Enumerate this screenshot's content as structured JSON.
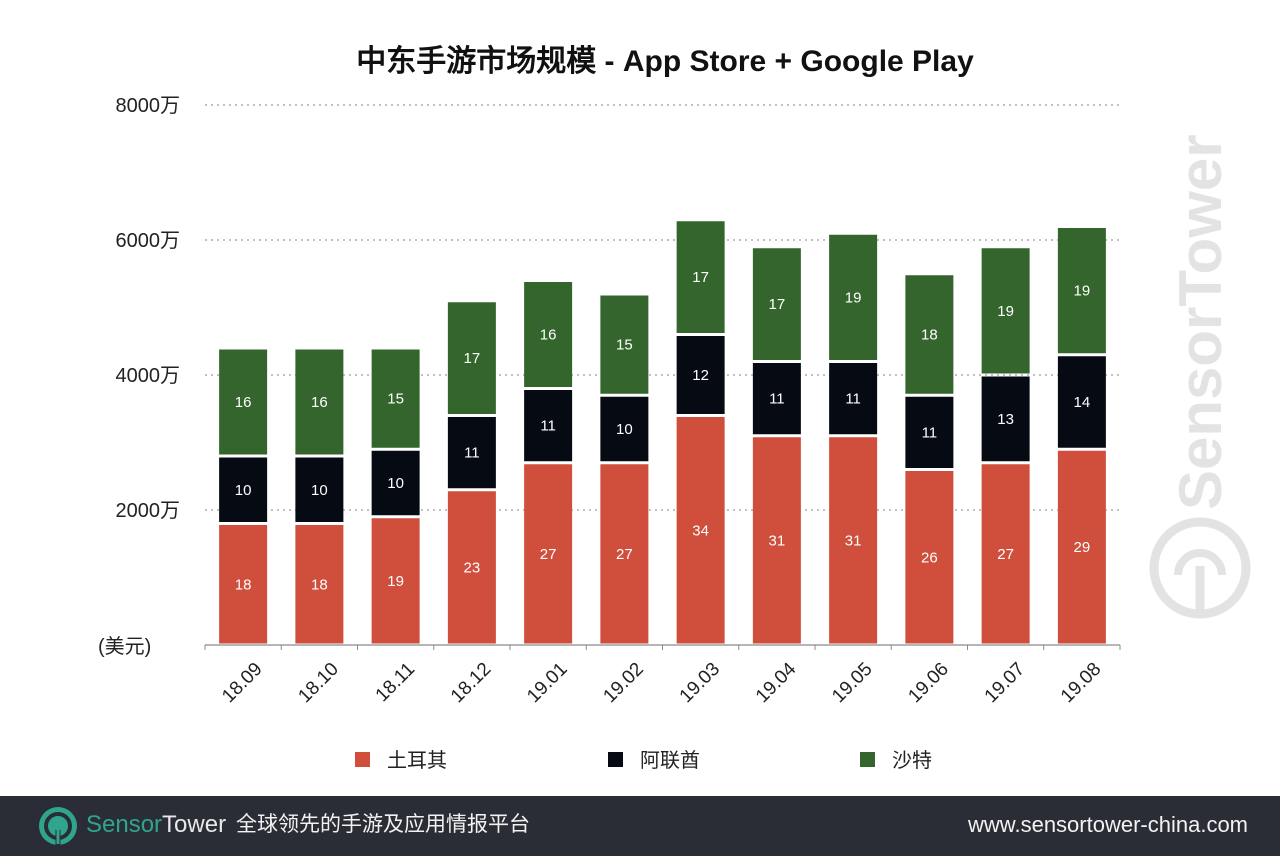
{
  "chart_data": {
    "type": "bar",
    "stacked": true,
    "title": "中东手游市场规模 - App Store + Google Play",
    "xlabel": "",
    "ylabel": "(美元)",
    "ylim": [
      0,
      8000
    ],
    "y_unit": "万",
    "y_ticks": [
      {
        "value": 0,
        "label": ""
      },
      {
        "value": 2000,
        "label": "2000万"
      },
      {
        "value": 4000,
        "label": "4000万"
      },
      {
        "value": 6000,
        "label": "6000万"
      },
      {
        "value": 8000,
        "label": "8000万"
      }
    ],
    "grid": true,
    "categories": [
      "18.09",
      "18.10",
      "18.11",
      "18.12",
      "19.01",
      "19.02",
      "19.03",
      "19.04",
      "19.05",
      "19.06",
      "19.07",
      "19.08"
    ],
    "label_unit_multiplier": 100,
    "series": [
      {
        "name": "土耳其",
        "color": "#cf4e3c",
        "values": [
          18,
          18,
          19,
          23,
          27,
          27,
          34,
          31,
          31,
          26,
          27,
          29
        ]
      },
      {
        "name": "阿联酋",
        "color": "#060a12",
        "values": [
          10,
          10,
          10,
          11,
          11,
          10,
          12,
          11,
          11,
          11,
          13,
          14
        ]
      },
      {
        "name": "沙特",
        "color": "#33652c",
        "values": [
          16,
          16,
          15,
          17,
          16,
          15,
          17,
          17,
          19,
          18,
          19,
          19
        ]
      }
    ],
    "legend_position": "bottom"
  },
  "watermark": "SensorTower",
  "footer": {
    "brand_part1": "Sensor",
    "brand_part2": "Tower",
    "slogan": "全球领先的手游及应用情报平台",
    "url": "www.sensortower-china.com"
  },
  "colors": {
    "footer_bg": "#2a2d35",
    "brand_teal": "#2fa58e"
  }
}
